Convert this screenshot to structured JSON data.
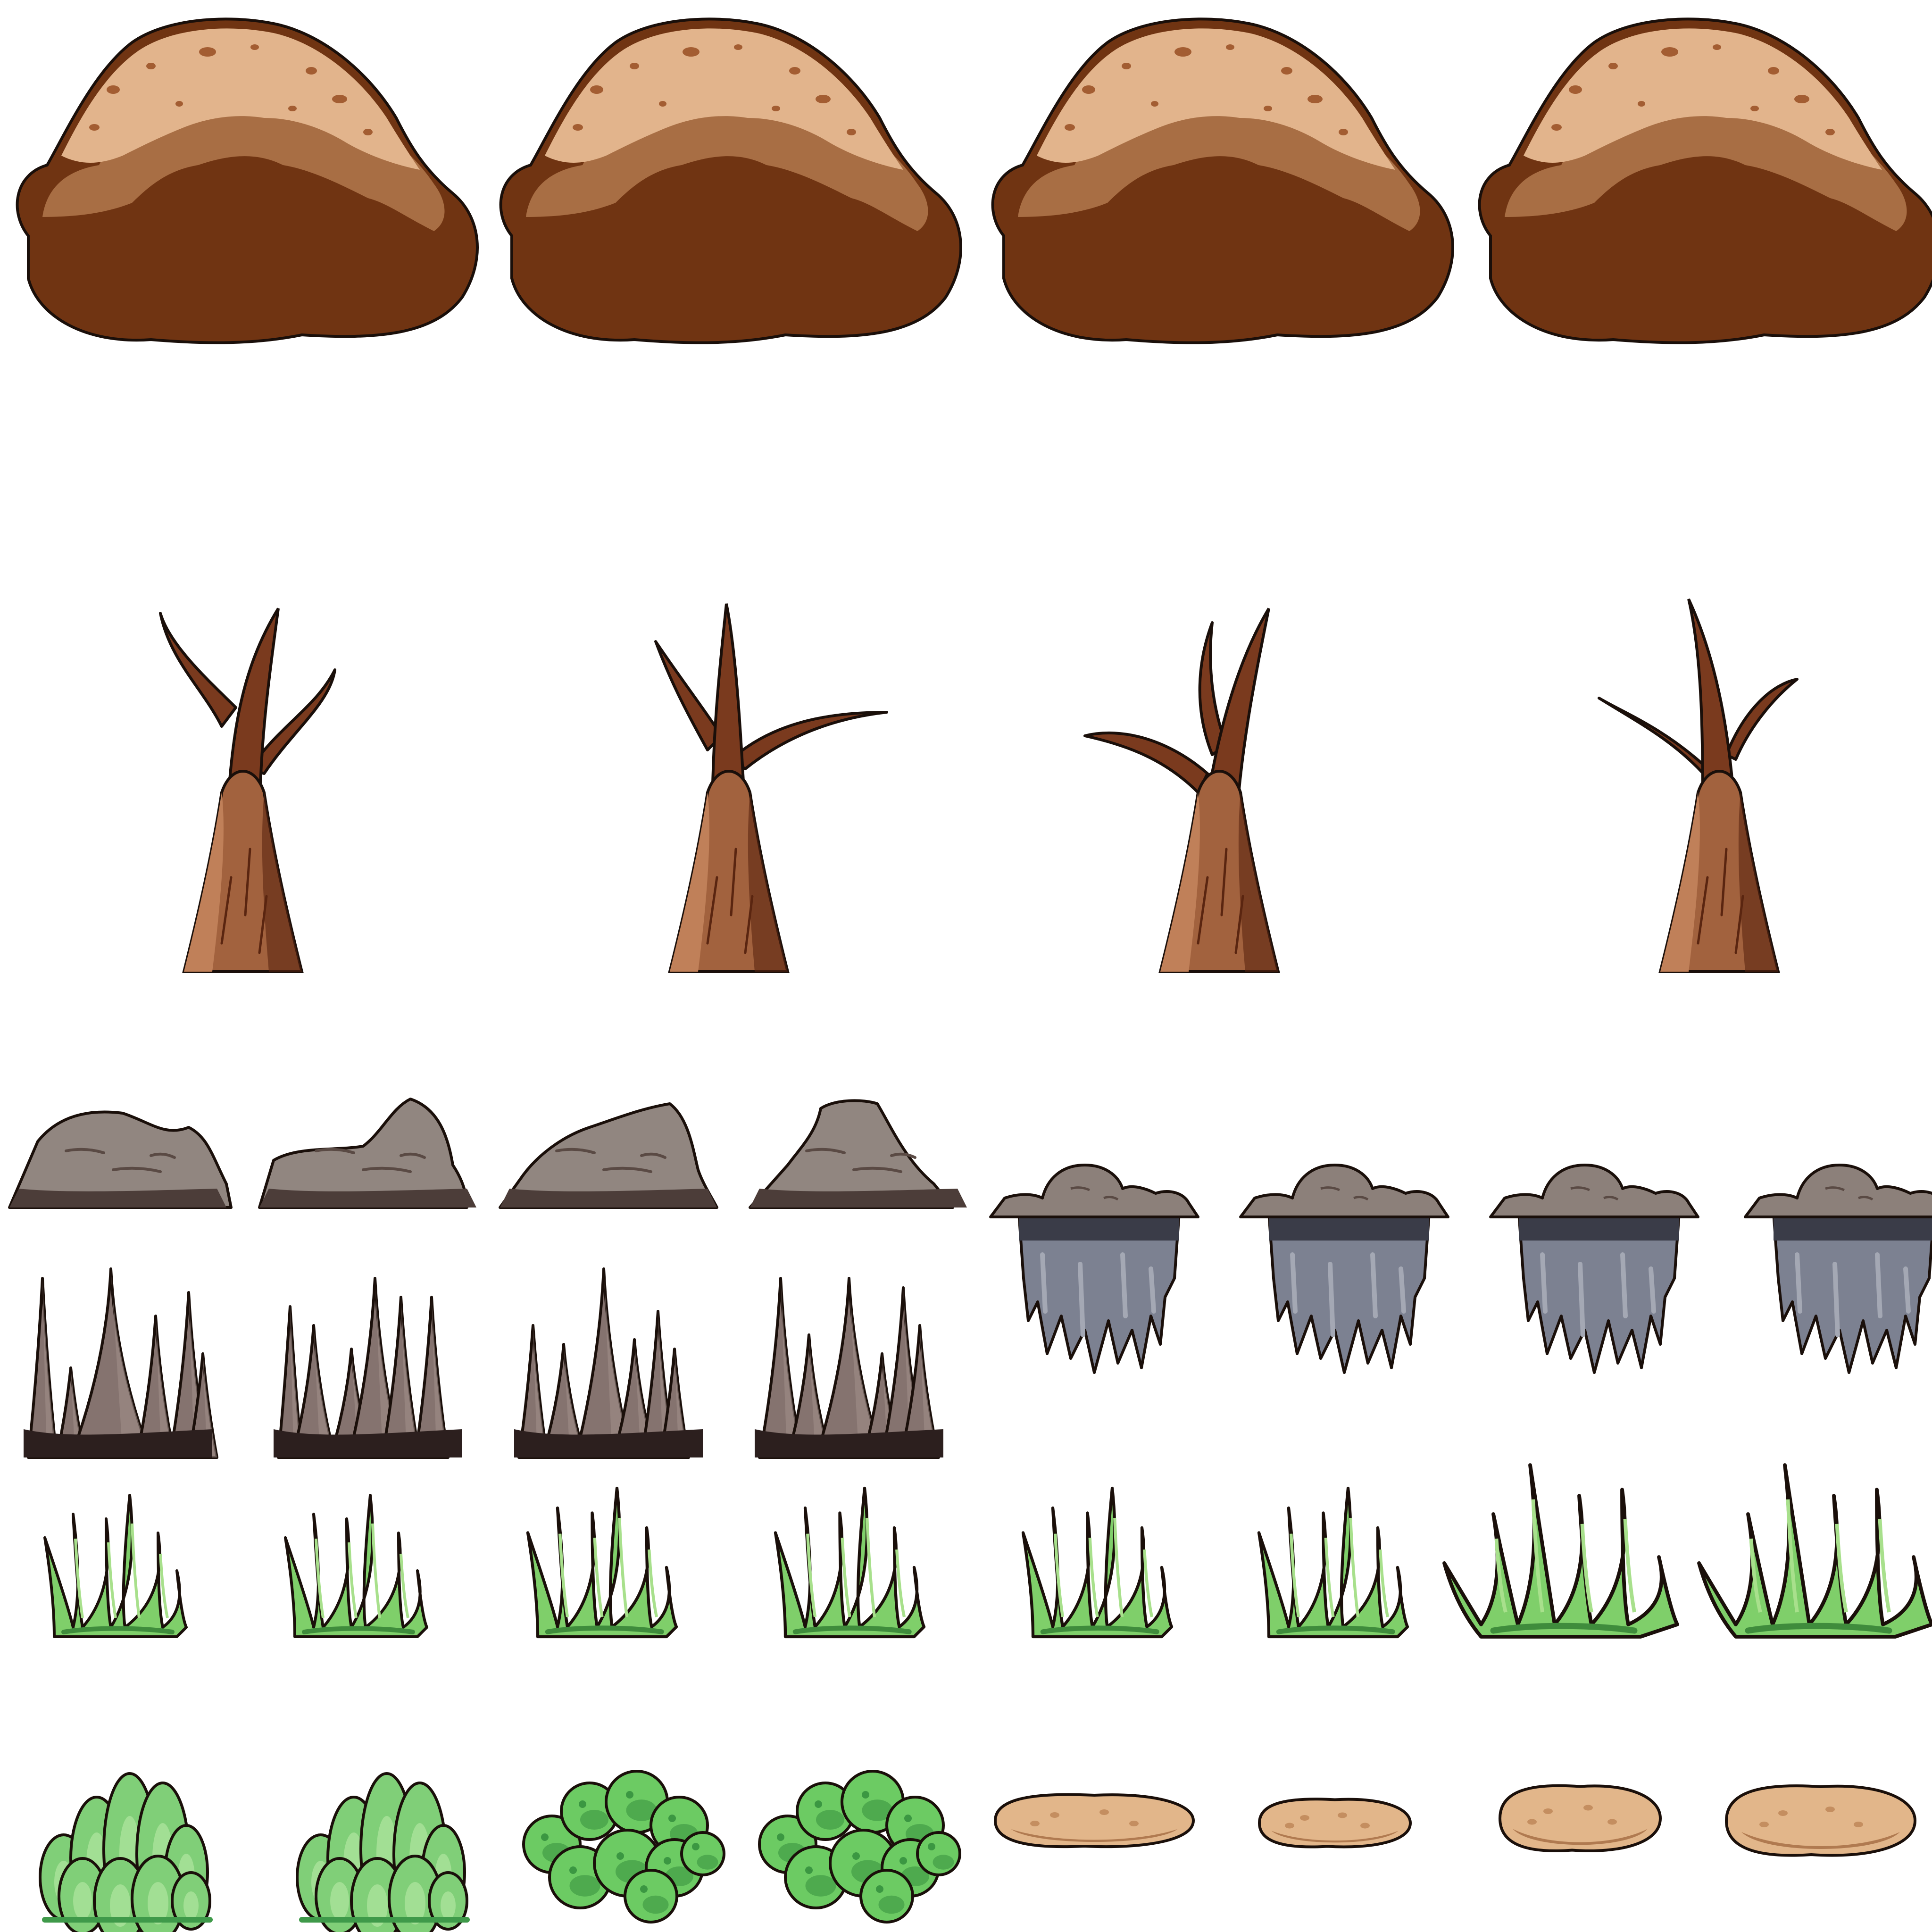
{
  "sheet": {
    "background": "#ffffff",
    "outline": "#1a0f0a",
    "rows": [
      {
        "name": "dirt-mounds",
        "count": 4,
        "colors": {
          "light": "#e2b48c",
          "mid": "#a86e44",
          "dark": "#703412",
          "spot": "#a35d32"
        }
      },
      {
        "name": "dead-trees",
        "count": 4,
        "colors": {
          "trunk": "#a2623e",
          "branch": "#7a3a1e",
          "highlight": "#c08059",
          "shadow": "#5a2510"
        }
      },
      {
        "name": "gray-rocks",
        "count": 4,
        "colors": {
          "base": "#918680",
          "light": "#a69a93",
          "dark": "#4c3d39",
          "crack": "#5a4a44"
        }
      },
      {
        "name": "floating-rock-platforms",
        "count": 4,
        "colors": {
          "top": "#8c807a",
          "body": "#7c8191",
          "dark": "#3a3c48",
          "light": "#a4a8b4"
        }
      },
      {
        "name": "rock-spikes",
        "count": 4,
        "colors": {
          "base": "#85736f",
          "light": "#a08e88",
          "dark": "#2c1f1e"
        }
      },
      {
        "name": "grass-tufts",
        "count": 8,
        "colors": {
          "fill": "#7fcf6a",
          "light": "#a8e08c",
          "dark": "#3f8c3c"
        }
      },
      {
        "name": "succulent-bushes",
        "count": 2,
        "colors": {
          "fill": "#80cf78",
          "dark": "#3f9a4a",
          "light": "#b0e5a0"
        }
      },
      {
        "name": "round-leaf-bushes",
        "count": 2,
        "colors": {
          "fill": "#6ccb63",
          "dark": "#2f8a3a",
          "light": "#9be08c"
        }
      },
      {
        "name": "sand-stones",
        "count": 4,
        "colors": {
          "fill": "#e2b68a",
          "dark": "#b07a50",
          "spot": "#c48e60"
        }
      }
    ]
  }
}
